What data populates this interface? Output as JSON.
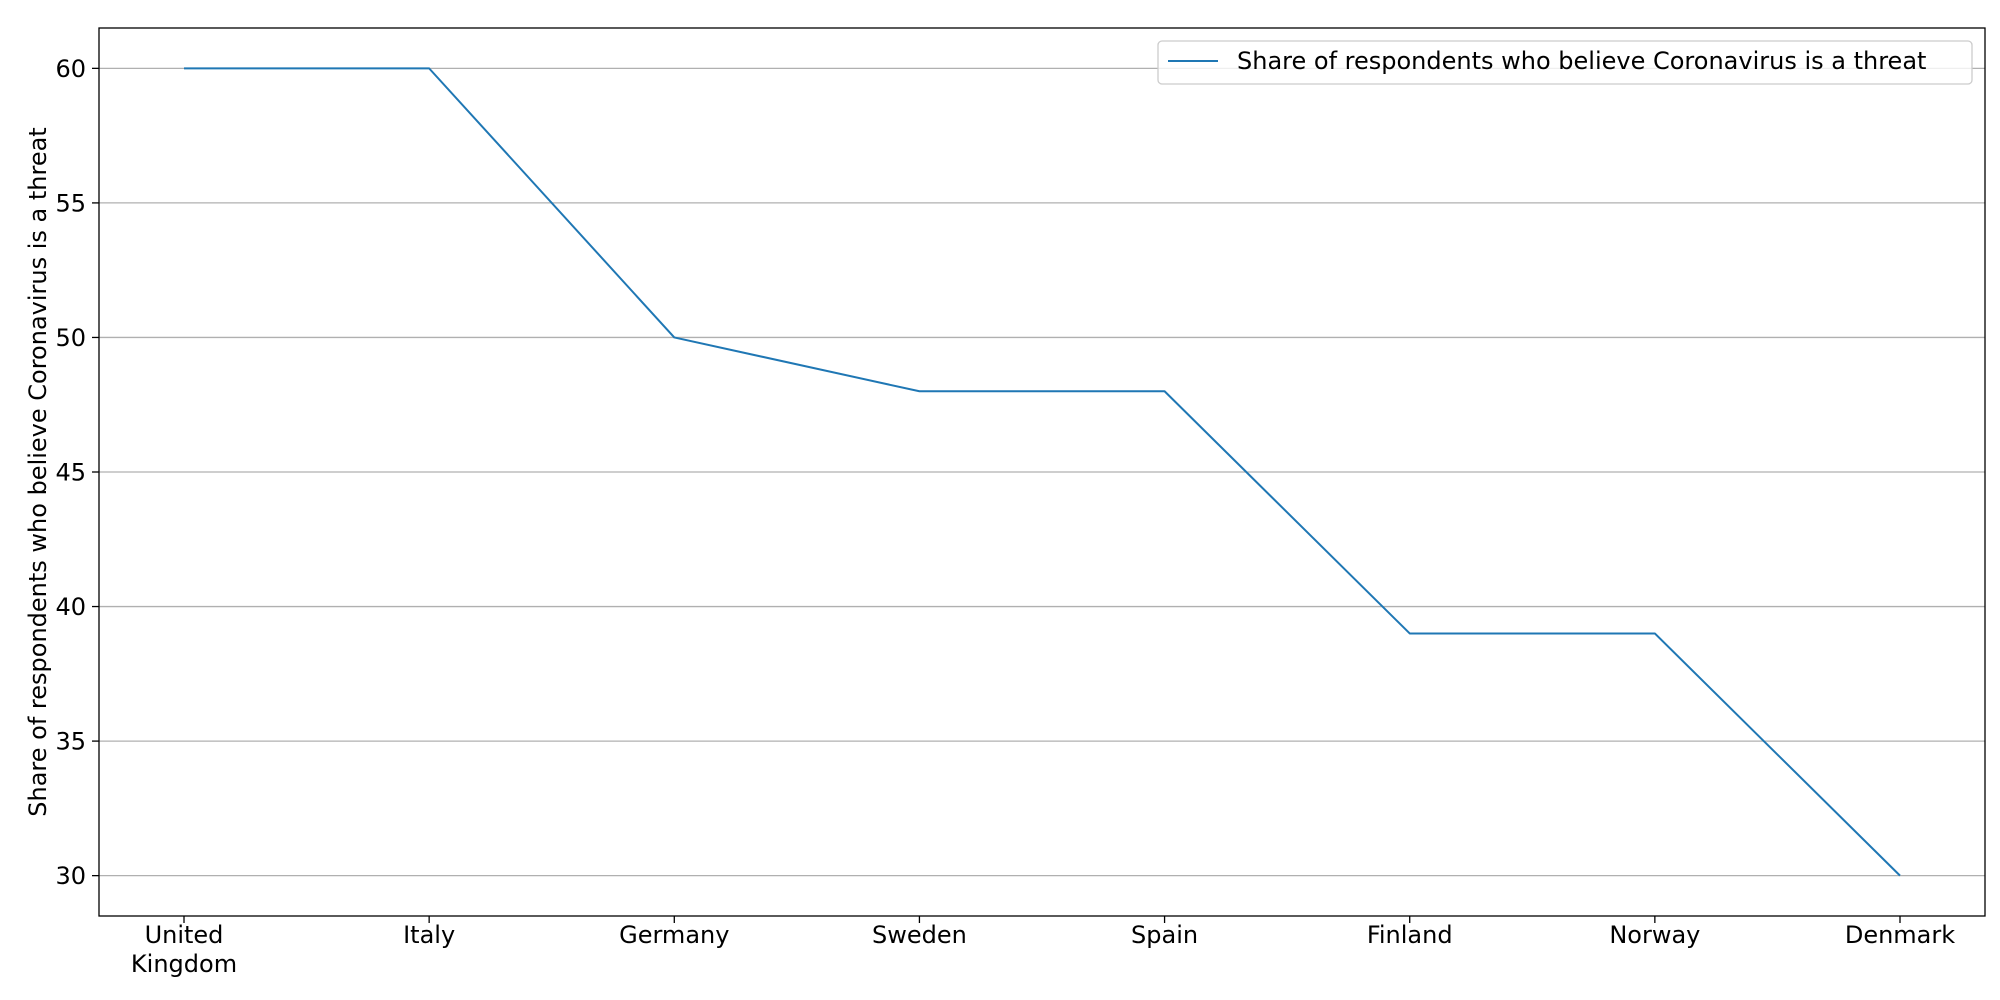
{
  "chart_data": {
    "type": "line",
    "title": "",
    "xlabel": "",
    "ylabel": "Share of respondents who believe Coronavirus is a threat",
    "categories": [
      "United Kingdom",
      "Italy",
      "Germany",
      "Sweden",
      "Spain",
      "Finland",
      "Norway",
      "Denmark"
    ],
    "category_lines": [
      [
        "United",
        "Kingdom"
      ],
      [
        "Italy"
      ],
      [
        "Germany"
      ],
      [
        "Sweden"
      ],
      [
        "Spain"
      ],
      [
        "Finland"
      ],
      [
        "Norway"
      ],
      [
        "Denmark"
      ]
    ],
    "series": [
      {
        "name": "Share of respondents who believe Coronavirus is a threat",
        "values": [
          60,
          60,
          50,
          48,
          48,
          39,
          39,
          30
        ],
        "color": "#1f77b4"
      }
    ],
    "yticks": [
      30,
      35,
      40,
      45,
      50,
      55,
      60
    ],
    "ylim": [
      28.5,
      61.5
    ],
    "grid": "y",
    "legend_position": "top-right"
  }
}
